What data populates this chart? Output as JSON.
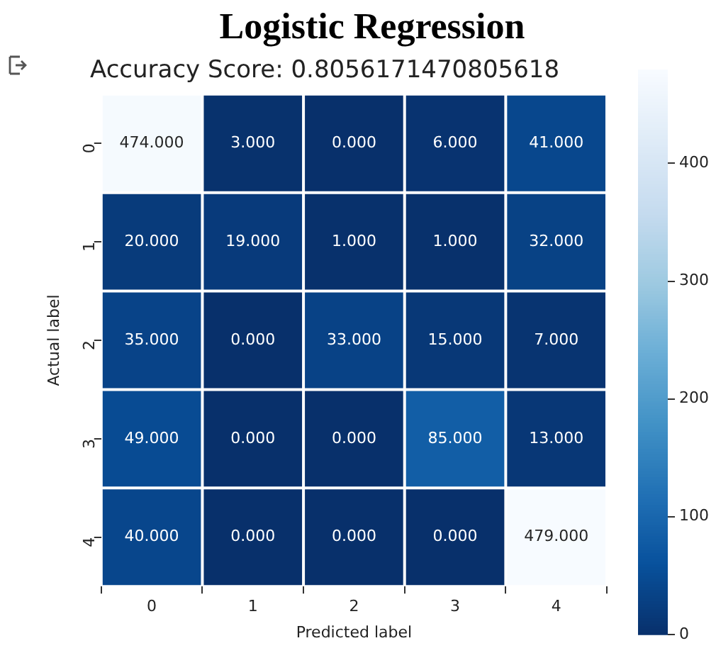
{
  "chart_data": {
    "type": "heatmap",
    "title": "Logistic Regression",
    "subtitle": "Accuracy Score: 0.8056171470805618",
    "xlabel": "Predicted label",
    "ylabel": "Actual label",
    "categories": [
      "0",
      "1",
      "2",
      "3",
      "4"
    ],
    "y_categories": [
      "0",
      "1",
      "2",
      "3",
      "4"
    ],
    "cells": [
      [
        474,
        3,
        0,
        6,
        41
      ],
      [
        20,
        19,
        1,
        1,
        32
      ],
      [
        35,
        0,
        33,
        15,
        7
      ],
      [
        49,
        0,
        0,
        85,
        13
      ],
      [
        40,
        0,
        0,
        0,
        479
      ]
    ],
    "cell_labels": [
      [
        "474.000",
        "3.000",
        "0.000",
        "6.000",
        "41.000"
      ],
      [
        "20.000",
        "19.000",
        "1.000",
        "1.000",
        "32.000"
      ],
      [
        "35.000",
        "0.000",
        "33.000",
        "15.000",
        "7.000"
      ],
      [
        "49.000",
        "0.000",
        "0.000",
        "85.000",
        "13.000"
      ],
      [
        "40.000",
        "0.000",
        "0.000",
        "0.000",
        "479.000"
      ]
    ],
    "clim": [
      0,
      479
    ],
    "cticks": [
      0,
      100,
      200,
      300,
      400
    ]
  }
}
